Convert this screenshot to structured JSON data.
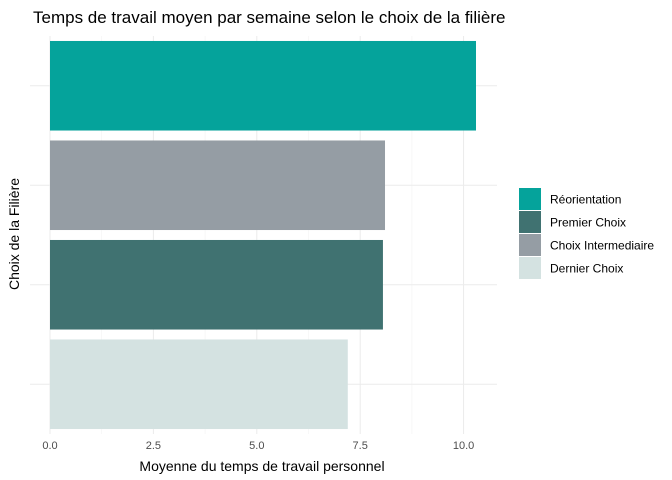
{
  "chart_data": {
    "type": "bar",
    "orientation": "horizontal",
    "title": "Temps de travail moyen par semaine selon le choix de la filière",
    "xlabel": "Moyenne du temps de travail personnel",
    "ylabel": "Choix de la Filière",
    "xlim": [
      0,
      10.9
    ],
    "xticks": [
      0,
      2.5,
      5,
      7.5,
      10
    ],
    "xtick_labels": [
      "0.0",
      "2.5",
      "5.0",
      "7.5",
      "10.0"
    ],
    "grid": true,
    "legend_position": "right",
    "series": [
      {
        "name": "Réorientation",
        "value": 10.3,
        "color": "#05A39B"
      },
      {
        "name": "Choix Intermediaire",
        "value": 8.1,
        "color": "#959DA4"
      },
      {
        "name": "Premier Choix",
        "value": 8.05,
        "color": "#407271"
      },
      {
        "name": "Dernier Choix",
        "value": 7.2,
        "color": "#D4E2E1"
      }
    ],
    "legend": [
      {
        "name": "Réorientation",
        "color": "#05A39B"
      },
      {
        "name": "Premier Choix",
        "color": "#407271"
      },
      {
        "name": "Choix Intermediaire",
        "color": "#959DA4"
      },
      {
        "name": "Dernier Choix",
        "color": "#D4E2E1"
      }
    ]
  }
}
